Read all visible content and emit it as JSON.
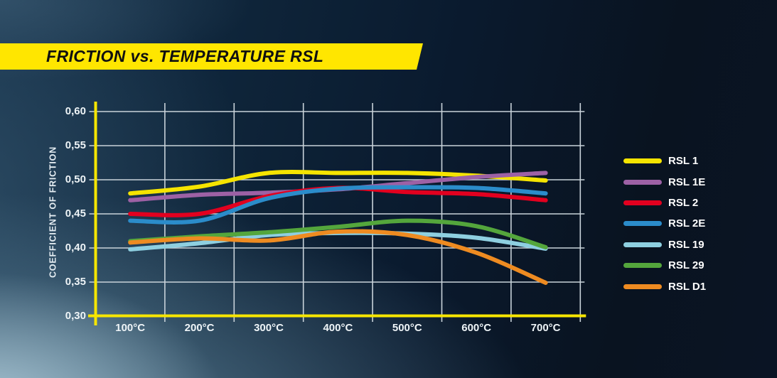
{
  "banner": {
    "title": "FRICTION vs. TEMPERATURE RSL",
    "background_color": "#ffe600",
    "text_color": "#101010"
  },
  "chart_data": {
    "type": "line",
    "title": "FRICTION vs. TEMPERATURE RSL",
    "xlabel": "",
    "ylabel": "COEFFICIENT OF FRICTION",
    "categories": [
      "100°C",
      "200°C",
      "300°C",
      "400°C",
      "500°C",
      "600°C",
      "700°C"
    ],
    "y_tick_labels": [
      "0,60",
      "0,55",
      "0,50",
      "0,45",
      "0,40",
      "0,35",
      "0,30"
    ],
    "ylim": [
      0.3,
      0.6
    ],
    "y_step": 0.05,
    "grid": true,
    "legend_position": "right",
    "axis_color": "#f7e600",
    "gridline_color": "#c9d3da",
    "series": [
      {
        "name": "RSL 1",
        "color": "#f5e400",
        "values": [
          0.48,
          0.49,
          0.51,
          0.51,
          0.51,
          0.506,
          0.499
        ]
      },
      {
        "name": "RSL 1E",
        "color": "#9d61a5",
        "values": [
          0.47,
          0.478,
          0.481,
          0.486,
          0.495,
          0.504,
          0.51
        ]
      },
      {
        "name": "RSL 2",
        "color": "#e2001f",
        "values": [
          0.45,
          0.45,
          0.476,
          0.488,
          0.482,
          0.479,
          0.47
        ]
      },
      {
        "name": "RSL 2E",
        "color": "#2b8cca",
        "values": [
          0.44,
          0.44,
          0.473,
          0.487,
          0.489,
          0.488,
          0.48
        ]
      },
      {
        "name": "RSL 19",
        "color": "#8ecfe0",
        "values": [
          0.398,
          0.407,
          0.419,
          0.422,
          0.421,
          0.415,
          0.399
        ]
      },
      {
        "name": "RSL 29",
        "color": "#54a63c",
        "values": [
          0.41,
          0.417,
          0.423,
          0.431,
          0.44,
          0.432,
          0.401
        ]
      },
      {
        "name": "RSL D1",
        "color": "#ee8b21",
        "values": [
          0.408,
          0.414,
          0.411,
          0.424,
          0.419,
          0.393,
          0.349
        ]
      }
    ]
  }
}
